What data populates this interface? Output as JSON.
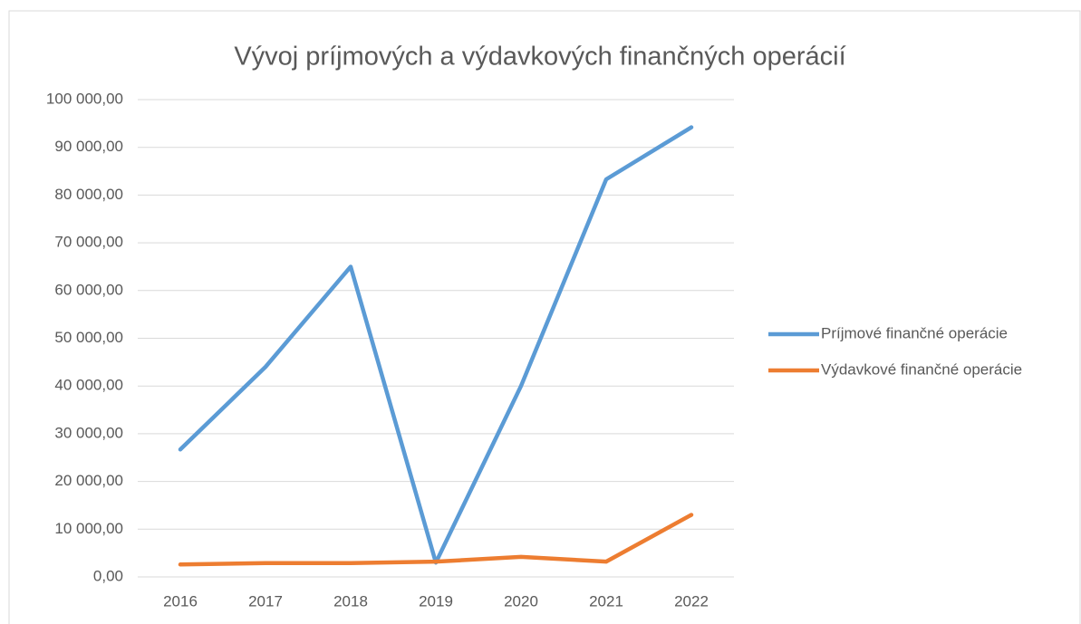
{
  "chart_data": {
    "type": "line",
    "title": "Vývoj príjmových a výdavkových finančných operácií",
    "categories": [
      "2016",
      "2017",
      "2018",
      "2019",
      "2020",
      "2021",
      "2022"
    ],
    "series": [
      {
        "name": "Príjmové finančné operácie",
        "color": "#5b9bd5",
        "values": [
          26700,
          44000,
          65000,
          3000,
          40000,
          83300,
          94200
        ]
      },
      {
        "name": "Výdavkové finančné operácie",
        "color": "#ed7d31",
        "values": [
          2600,
          2900,
          2900,
          3200,
          4200,
          3200,
          13000
        ]
      }
    ],
    "ylim": [
      0,
      100000
    ],
    "yticks": [
      {
        "value": 0,
        "label": "0,00"
      },
      {
        "value": 10000,
        "label": "10 000,00"
      },
      {
        "value": 20000,
        "label": "20 000,00"
      },
      {
        "value": 30000,
        "label": "30 000,00"
      },
      {
        "value": 40000,
        "label": "40 000,00"
      },
      {
        "value": 50000,
        "label": "50 000,00"
      },
      {
        "value": 60000,
        "label": "60 000,00"
      },
      {
        "value": 70000,
        "label": "70 000,00"
      },
      {
        "value": 80000,
        "label": "80 000,00"
      },
      {
        "value": 90000,
        "label": "90 000,00"
      },
      {
        "value": 100000,
        "label": "100 000,00"
      }
    ],
    "grid": true,
    "legend": "right"
  }
}
